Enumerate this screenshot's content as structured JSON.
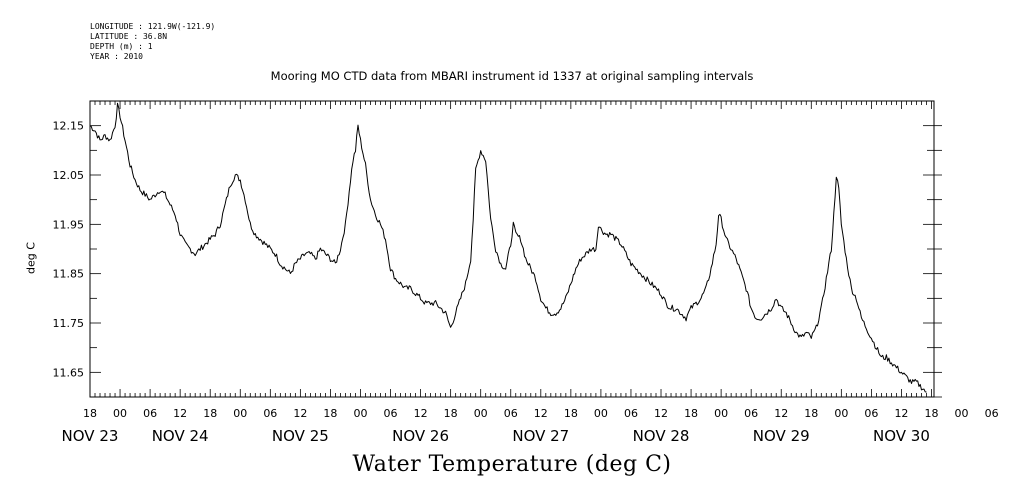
{
  "meta": {
    "longitude": "LONGITUDE : 121.9W(-121.9)",
    "latitude": "LATITUDE : 36.8N",
    "depth": "DEPTH (m) : 1",
    "year": "YEAR : 2010"
  },
  "chart_data": {
    "type": "line",
    "title": "Mooring MO CTD data from MBARI instrument id 1337 at original sampling intervals",
    "xlabel": "Water Temperature (deg C)",
    "ylabel": "deg C",
    "x_unit": "hours since NOV 22 18:00",
    "xlim": [
      0,
      168.5
    ],
    "ylim": [
      11.6,
      12.2
    ],
    "yticks": [
      11.65,
      11.75,
      11.85,
      11.95,
      12.05,
      12.15
    ],
    "ytick_labels": [
      "11.65",
      "11.75",
      "11.85",
      "11.95",
      "12.05",
      "12.15"
    ],
    "xtick_hour_labels": [
      "18",
      "00",
      "06",
      "12",
      "18",
      "00",
      "06",
      "12",
      "18",
      "00",
      "06",
      "12",
      "18",
      "00",
      "06",
      "12",
      "18",
      "00",
      "06",
      "12",
      "18",
      "00",
      "06",
      "12",
      "18",
      "00",
      "06",
      "12",
      "18",
      "00",
      "06",
      "12",
      "18"
    ],
    "date_labels": [
      {
        "label": "NOV 23",
        "hour": 0
      },
      {
        "label": "NOV 24",
        "hour": 18
      },
      {
        "label": "NOV 25",
        "hour": 42
      },
      {
        "label": "NOV 26",
        "hour": 66
      },
      {
        "label": "NOV 27",
        "hour": 90
      },
      {
        "label": "NOV 28",
        "hour": 114
      },
      {
        "label": "NOV 29",
        "hour": 138
      },
      {
        "label": "NOV 30",
        "hour": 162
      }
    ],
    "series": [
      {
        "points": [
          [
            0,
            12.15
          ],
          [
            1,
            12.14
          ],
          [
            2,
            12.12
          ],
          [
            3,
            12.13
          ],
          [
            4,
            12.12
          ],
          [
            5,
            12.15
          ],
          [
            5.5,
            12.19
          ],
          [
            6,
            12.17
          ],
          [
            7,
            12.12
          ],
          [
            8,
            12.07
          ],
          [
            9,
            12.04
          ],
          [
            10,
            12.02
          ],
          [
            11,
            12.01
          ],
          [
            12,
            12.0
          ],
          [
            13,
            12.01
          ],
          [
            14,
            12.02
          ],
          [
            15,
            12.01
          ],
          [
            16,
            11.99
          ],
          [
            17,
            11.97
          ],
          [
            18,
            11.93
          ],
          [
            19,
            11.91
          ],
          [
            20,
            11.9
          ],
          [
            21,
            11.89
          ],
          [
            22,
            11.9
          ],
          [
            23,
            11.91
          ],
          [
            24,
            11.92
          ],
          [
            25,
            11.93
          ],
          [
            26,
            11.95
          ],
          [
            27,
            11.99
          ],
          [
            28,
            12.03
          ],
          [
            29,
            12.05
          ],
          [
            30,
            12.04
          ],
          [
            31,
            12.0
          ],
          [
            32,
            11.95
          ],
          [
            33,
            11.93
          ],
          [
            34,
            11.92
          ],
          [
            35,
            11.91
          ],
          [
            36,
            11.9
          ],
          [
            37,
            11.89
          ],
          [
            38,
            11.87
          ],
          [
            39,
            11.86
          ],
          [
            40,
            11.85
          ],
          [
            41,
            11.87
          ],
          [
            42,
            11.88
          ],
          [
            43,
            11.89
          ],
          [
            44,
            11.89
          ],
          [
            45,
            11.88
          ],
          [
            46,
            11.9
          ],
          [
            47,
            11.89
          ],
          [
            48,
            11.88
          ],
          [
            49,
            11.87
          ],
          [
            50,
            11.9
          ],
          [
            51,
            11.95
          ],
          [
            52,
            12.04
          ],
          [
            52.5,
            12.08
          ],
          [
            53,
            12.1
          ],
          [
            53.5,
            12.15
          ],
          [
            54,
            12.12
          ],
          [
            55,
            12.07
          ],
          [
            56,
            12.0
          ],
          [
            57,
            11.97
          ],
          [
            58,
            11.95
          ],
          [
            59,
            11.92
          ],
          [
            60,
            11.86
          ],
          [
            61,
            11.84
          ],
          [
            62,
            11.83
          ],
          [
            63,
            11.82
          ],
          [
            64,
            11.82
          ],
          [
            65,
            11.81
          ],
          [
            66,
            11.8
          ],
          [
            67,
            11.79
          ],
          [
            68,
            11.79
          ],
          [
            69,
            11.79
          ],
          [
            70,
            11.78
          ],
          [
            71,
            11.77
          ],
          [
            72,
            11.74
          ],
          [
            73,
            11.77
          ],
          [
            74,
            11.8
          ],
          [
            75,
            11.83
          ],
          [
            76,
            11.88
          ],
          [
            76.5,
            11.96
          ],
          [
            77,
            12.06
          ],
          [
            77.5,
            12.08
          ],
          [
            78,
            12.1
          ],
          [
            79,
            12.08
          ],
          [
            80,
            11.96
          ],
          [
            81,
            11.9
          ],
          [
            82,
            11.87
          ],
          [
            83,
            11.86
          ],
          [
            84,
            11.91
          ],
          [
            84.5,
            11.95
          ],
          [
            85,
            11.93
          ],
          [
            86,
            11.92
          ],
          [
            87,
            11.88
          ],
          [
            88,
            11.86
          ],
          [
            89,
            11.84
          ],
          [
            90,
            11.8
          ],
          [
            91,
            11.78
          ],
          [
            92,
            11.77
          ],
          [
            93,
            11.77
          ],
          [
            94,
            11.78
          ],
          [
            95,
            11.8
          ],
          [
            96,
            11.83
          ],
          [
            97,
            11.86
          ],
          [
            98,
            11.88
          ],
          [
            99,
            11.89
          ],
          [
            100,
            11.9
          ],
          [
            101,
            11.9
          ],
          [
            101.5,
            11.95
          ],
          [
            102,
            11.94
          ],
          [
            103,
            11.93
          ],
          [
            104,
            11.93
          ],
          [
            105,
            11.92
          ],
          [
            106,
            11.91
          ],
          [
            107,
            11.89
          ],
          [
            108,
            11.87
          ],
          [
            109,
            11.86
          ],
          [
            110,
            11.85
          ],
          [
            111,
            11.84
          ],
          [
            112,
            11.83
          ],
          [
            113,
            11.82
          ],
          [
            114,
            11.81
          ],
          [
            115,
            11.79
          ],
          [
            116,
            11.78
          ],
          [
            117,
            11.78
          ],
          [
            118,
            11.77
          ],
          [
            119,
            11.76
          ],
          [
            120,
            11.78
          ],
          [
            121,
            11.79
          ],
          [
            122,
            11.8
          ],
          [
            123,
            11.82
          ],
          [
            124,
            11.86
          ],
          [
            125,
            11.91
          ],
          [
            125.5,
            11.97
          ],
          [
            126,
            11.96
          ],
          [
            127,
            11.92
          ],
          [
            128,
            11.9
          ],
          [
            129,
            11.88
          ],
          [
            130,
            11.85
          ],
          [
            131,
            11.82
          ],
          [
            132,
            11.78
          ],
          [
            133,
            11.76
          ],
          [
            134,
            11.76
          ],
          [
            135,
            11.77
          ],
          [
            136,
            11.78
          ],
          [
            137,
            11.8
          ],
          [
            138,
            11.78
          ],
          [
            139,
            11.77
          ],
          [
            140,
            11.75
          ],
          [
            141,
            11.73
          ],
          [
            142,
            11.72
          ],
          [
            143,
            11.73
          ],
          [
            144,
            11.72
          ],
          [
            145,
            11.74
          ],
          [
            146,
            11.78
          ],
          [
            147,
            11.84
          ],
          [
            148,
            11.9
          ],
          [
            148.5,
            11.97
          ],
          [
            149,
            12.05
          ],
          [
            149.5,
            12.02
          ],
          [
            150,
            11.95
          ],
          [
            151,
            11.88
          ],
          [
            152,
            11.82
          ],
          [
            153,
            11.8
          ],
          [
            154,
            11.76
          ],
          [
            155,
            11.74
          ],
          [
            156,
            11.72
          ],
          [
            157,
            11.7
          ],
          [
            158,
            11.68
          ],
          [
            159,
            11.68
          ],
          [
            160,
            11.67
          ],
          [
            161,
            11.66
          ],
          [
            162,
            11.65
          ],
          [
            163,
            11.64
          ],
          [
            164,
            11.63
          ],
          [
            165,
            11.63
          ],
          [
            166,
            11.62
          ],
          [
            167,
            11.61
          ]
        ]
      }
    ]
  }
}
